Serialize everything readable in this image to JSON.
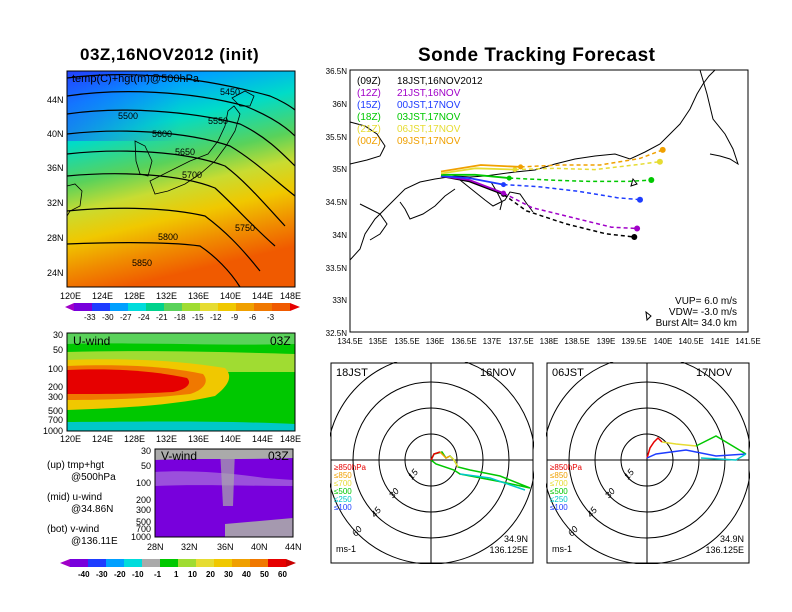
{
  "left_title": "03Z,16NOV2012 (init)",
  "right_title": "Sonde Tracking Forecast",
  "upper_panel": {
    "label": "temp(C)+hgt(m)@500hPa",
    "contours": [
      "5450",
      "5500",
      "5550",
      "5600",
      "5650",
      "5700",
      "5750",
      "5800",
      "5850"
    ],
    "lat_ticks": [
      "44N",
      "40N",
      "36N",
      "32N",
      "28N",
      "24N"
    ],
    "lon_ticks": [
      "120E",
      "124E",
      "128E",
      "132E",
      "136E",
      "140E",
      "144E",
      "148E"
    ],
    "colorbar": [
      "-33",
      "-30",
      "-27",
      "-24",
      "-21",
      "-18",
      "-15",
      "-12",
      "-9",
      "-6",
      "-3"
    ]
  },
  "uwind_panel": {
    "label": "U-wind",
    "time": "03Z",
    "p_ticks": [
      "30",
      "50",
      "100",
      "200",
      "300",
      "500",
      "700",
      "1000"
    ],
    "lon_ticks": [
      "120E",
      "124E",
      "128E",
      "132E",
      "136E",
      "140E",
      "144E",
      "148E"
    ]
  },
  "vwind_panel": {
    "label": "V-wind",
    "time": "03Z",
    "p_ticks": [
      "30",
      "50",
      "100",
      "200",
      "300",
      "500",
      "700",
      "1000"
    ],
    "lat_ticks": [
      "28N",
      "32N",
      "36N",
      "40N",
      "44N"
    ],
    "colorbar": [
      "-40",
      "-30",
      "-20",
      "-10",
      "-1",
      "1",
      "10",
      "20",
      "30",
      "40",
      "50",
      "60"
    ]
  },
  "legend_left": [
    {
      "a": "(up) tmp+hgt",
      "b": "@500hPa"
    },
    {
      "a": "(mid) u-wind",
      "b": "@34.86N"
    },
    {
      "a": "(bot) v-wind",
      "b": "@136.11E"
    }
  ],
  "map": {
    "lat_ticks": [
      "36.5N",
      "36N",
      "35.5N",
      "35N",
      "34.5N",
      "34N",
      "33.5N",
      "33N",
      "32.5N"
    ],
    "lon_ticks": [
      "134.5E",
      "135E",
      "135.5E",
      "136E",
      "136.5E",
      "137E",
      "137.5E",
      "138E",
      "138.5E",
      "139E",
      "139.5E",
      "140E",
      "140.5E",
      "141E",
      "141.5E"
    ],
    "legend": [
      {
        "z": "(09Z)",
        "t": "18JST,16NOV2012",
        "color": "#000000"
      },
      {
        "z": "(12Z)",
        "t": "21JST,16NOV",
        "color": "#a000c8"
      },
      {
        "z": "(15Z)",
        "t": "00JST,17NOV",
        "color": "#1e3cff"
      },
      {
        "z": "(18Z)",
        "t": "03JST,17NOV",
        "color": "#00c800"
      },
      {
        "z": "(21Z)",
        "t": "06JST,17NOV",
        "color": "#e6dc32"
      },
      {
        "z": "(00Z)",
        "t": "09JST,17NOV",
        "color": "#f0a000"
      }
    ],
    "params": [
      "VUP= 6.0 m/s",
      "VDW= -3.0 m/s",
      "Burst Alt= 34.0 km"
    ]
  },
  "hodo_left": {
    "time": "18JST",
    "date": "16NOV",
    "rings": [
      "15",
      "30",
      "45",
      "60"
    ],
    "levels": [
      {
        "t": "≥850hPa",
        "c": "#e60000"
      },
      {
        "t": "≤850",
        "c": "#f0a000"
      },
      {
        "t": "≤700",
        "c": "#e6dc32"
      },
      {
        "t": "≤500",
        "c": "#00c800"
      },
      {
        "t": "≤250",
        "c": "#00c8c8"
      },
      {
        "t": "≤100",
        "c": "#1e3cff"
      }
    ],
    "unit": "ms-1",
    "lat": "34.9N",
    "lon": "136.125E"
  },
  "hodo_right": {
    "time": "06JST",
    "date": "17NOV",
    "rings": [
      "15",
      "30",
      "45",
      "60"
    ],
    "levels": [
      {
        "t": "≥850hPa",
        "c": "#e60000"
      },
      {
        "t": "≤850",
        "c": "#f0a000"
      },
      {
        "t": "≤700",
        "c": "#e6dc32"
      },
      {
        "t": "≤500",
        "c": "#00c800"
      },
      {
        "t": "≤250",
        "c": "#00c8c8"
      },
      {
        "t": "≤100",
        "c": "#1e3cff"
      }
    ],
    "unit": "ms-1",
    "lat": "34.9N",
    "lon": "136.125E"
  },
  "chart_data": {
    "type": "line",
    "title": "Sonde Tracking Forecast",
    "xlim": [
      134.5,
      141.5
    ],
    "ylim": [
      32.5,
      36.5
    ],
    "series": [
      {
        "name": "(09Z) 18JST,16NOV2012",
        "x": [
          136.1,
          136.6,
          137.2,
          137.6,
          138.3,
          139.0,
          139.5
        ],
        "y": [
          34.88,
          34.8,
          34.6,
          34.35,
          34.15,
          34.0,
          33.95
        ]
      },
      {
        "name": "(12Z) 21JST,16NOV",
        "x": [
          136.1,
          136.6,
          137.2,
          137.7,
          138.4,
          139.1,
          139.55
        ],
        "y": [
          34.88,
          34.82,
          34.62,
          34.4,
          34.25,
          34.1,
          34.08
        ]
      },
      {
        "name": "(15Z) 00JST,17NOV",
        "x": [
          136.1,
          136.6,
          137.2,
          137.8,
          138.5,
          139.2,
          139.6
        ],
        "y": [
          34.88,
          34.85,
          34.75,
          34.72,
          34.65,
          34.55,
          34.52
        ]
      },
      {
        "name": "(18Z) 03JST,17NOV",
        "x": [
          136.1,
          136.7,
          137.3,
          138.0,
          138.7,
          139.4,
          139.8
        ],
        "y": [
          34.9,
          34.9,
          34.85,
          34.82,
          34.8,
          34.8,
          34.82
        ]
      },
      {
        "name": "(21Z) 06JST,17NOV",
        "x": [
          136.1,
          136.7,
          137.4,
          138.1,
          138.8,
          139.5,
          139.95
        ],
        "y": [
          34.92,
          35.0,
          34.98,
          35.0,
          34.98,
          35.05,
          35.1
        ]
      },
      {
        "name": "(00Z) 09JST,17NOV",
        "x": [
          136.1,
          136.8,
          137.5,
          138.2,
          138.9,
          139.6,
          140.0
        ],
        "y": [
          34.95,
          35.05,
          35.02,
          35.05,
          35.05,
          35.15,
          35.28
        ]
      }
    ]
  }
}
